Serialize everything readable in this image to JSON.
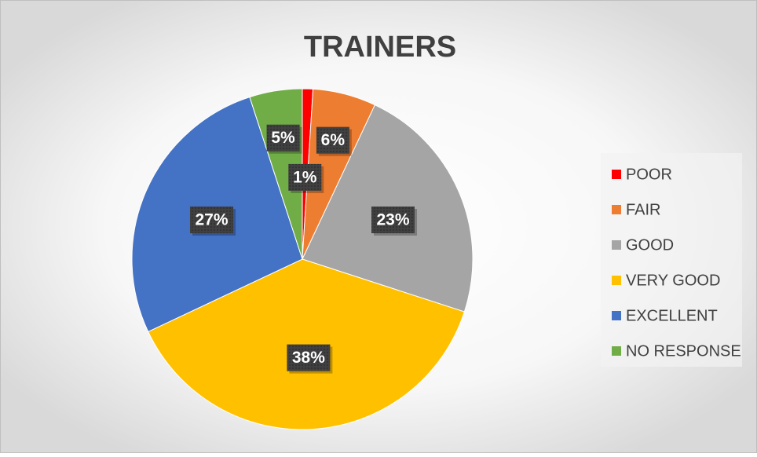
{
  "chart_data": {
    "type": "pie",
    "title": "TRAINERS",
    "categories": [
      "POOR",
      "FAIR",
      "GOOD",
      "VERY GOOD",
      "EXCELLENT",
      "NO RESPONSE"
    ],
    "values": [
      1,
      6,
      23,
      38,
      27,
      5
    ],
    "value_labels": [
      "1%",
      "6%",
      "23%",
      "38%",
      "27%",
      "5%"
    ],
    "colors": [
      "#ff0000",
      "#ed7d31",
      "#a5a5a5",
      "#ffc000",
      "#4472c4",
      "#70ad47"
    ],
    "legend": "right"
  }
}
